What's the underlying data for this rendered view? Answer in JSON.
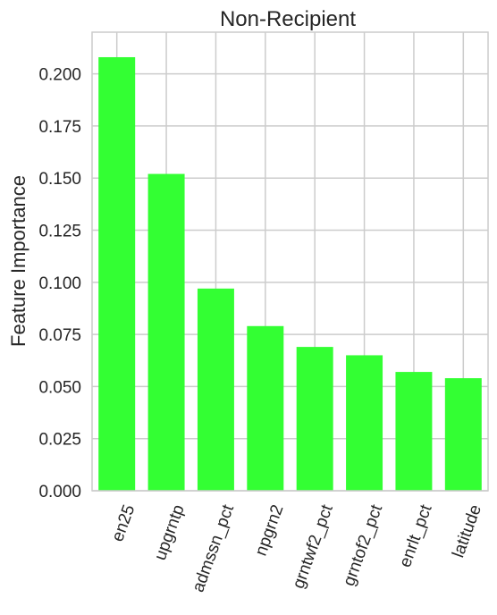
{
  "chart_data": {
    "type": "bar",
    "title": "Non-Recipient",
    "xlabel": "",
    "ylabel": "Feature Importance",
    "categories": [
      "en25",
      "upgrntp",
      "admssn_pct",
      "npgrn2",
      "grntwf2_pct",
      "grntof2_pct",
      "enrlt_pct",
      "latitude"
    ],
    "values": [
      0.208,
      0.152,
      0.097,
      0.079,
      0.069,
      0.065,
      0.057,
      0.054
    ],
    "ylim": [
      0,
      0.22
    ],
    "yticks": [
      "0.000",
      "0.025",
      "0.050",
      "0.075",
      "0.100",
      "0.125",
      "0.150",
      "0.175",
      "0.200"
    ],
    "ytick_values": [
      0,
      0.025,
      0.05,
      0.075,
      0.1,
      0.125,
      0.15,
      0.175,
      0.2
    ],
    "grid": true,
    "bar_color": "#33ff33"
  }
}
